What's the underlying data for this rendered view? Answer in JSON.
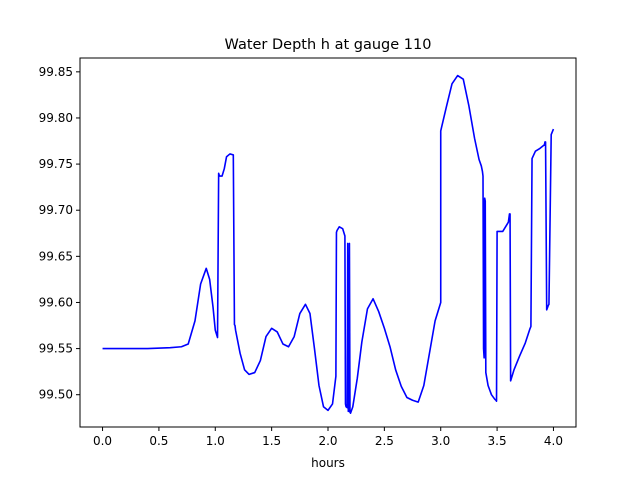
{
  "chart_data": {
    "type": "line",
    "title": "Water Depth h at gauge 110",
    "xlabel": "hours",
    "ylabel": "",
    "xlim": [
      -0.2,
      4.2
    ],
    "ylim": [
      99.465,
      99.865
    ],
    "xticks": [
      0.0,
      0.5,
      1.0,
      1.5,
      2.0,
      2.5,
      3.0,
      3.5,
      4.0
    ],
    "xtick_labels": [
      "0.0",
      "0.5",
      "1.0",
      "1.5",
      "2.0",
      "2.5",
      "3.0",
      "3.5",
      "4.0"
    ],
    "yticks": [
      99.5,
      99.55,
      99.6,
      99.65,
      99.7,
      99.75,
      99.8,
      99.85
    ],
    "ytick_labels": [
      "99.50",
      "99.55",
      "99.60",
      "99.65",
      "99.70",
      "99.75",
      "99.80",
      "99.85"
    ],
    "grid": false,
    "legend": "none",
    "series": [
      {
        "color": "#0000ff",
        "x": [
          0.0,
          0.2,
          0.4,
          0.6,
          0.7,
          0.76,
          0.82,
          0.87,
          0.92,
          0.95,
          0.98,
          1.0,
          1.02,
          1.03,
          1.035,
          1.04,
          1.06,
          1.08,
          1.1,
          1.13,
          1.16,
          1.17,
          1.175,
          1.18,
          1.22,
          1.26,
          1.3,
          1.35,
          1.4,
          1.45,
          1.5,
          1.55,
          1.6,
          1.65,
          1.7,
          1.75,
          1.8,
          1.84,
          1.88,
          1.92,
          1.96,
          2.0,
          2.04,
          2.07,
          2.075,
          2.08,
          2.1,
          2.13,
          2.15,
          2.155,
          2.16,
          2.17,
          2.175,
          2.18,
          2.185,
          2.19,
          2.195,
          2.2,
          2.22,
          2.26,
          2.3,
          2.35,
          2.4,
          2.45,
          2.5,
          2.55,
          2.6,
          2.65,
          2.7,
          2.75,
          2.8,
          2.85,
          2.9,
          2.95,
          3.0,
          3.0,
          3.05,
          3.1,
          3.15,
          3.2,
          3.25,
          3.3,
          3.34,
          3.36,
          3.37,
          3.375,
          3.38,
          3.385,
          3.39,
          3.395,
          3.4,
          3.42,
          3.45,
          3.48,
          3.49,
          3.495,
          3.5,
          3.55,
          3.6,
          3.61,
          3.615,
          3.62,
          3.65,
          3.7,
          3.75,
          3.79,
          3.8,
          3.81,
          3.84,
          3.88,
          3.92,
          3.925,
          3.93,
          3.94,
          3.955,
          3.96,
          3.98,
          4.0
        ],
        "y": [
          99.55,
          99.55,
          99.55,
          99.551,
          99.552,
          99.555,
          99.58,
          99.62,
          99.637,
          99.625,
          99.595,
          99.57,
          99.562,
          99.74,
          99.738,
          99.737,
          99.737,
          99.745,
          99.758,
          99.761,
          99.76,
          99.576,
          99.575,
          99.57,
          99.545,
          99.527,
          99.522,
          99.524,
          99.537,
          99.563,
          99.572,
          99.568,
          99.555,
          99.552,
          99.563,
          99.588,
          99.598,
          99.588,
          99.55,
          99.51,
          99.487,
          99.483,
          99.49,
          99.52,
          99.676,
          99.678,
          99.682,
          99.68,
          99.672,
          99.49,
          99.487,
          99.486,
          99.664,
          99.482,
          99.482,
          99.664,
          99.481,
          99.48,
          99.487,
          99.518,
          99.557,
          99.593,
          99.604,
          99.59,
          99.572,
          99.552,
          99.527,
          99.509,
          99.497,
          99.494,
          99.492,
          99.51,
          99.545,
          99.58,
          99.6,
          99.786,
          99.812,
          99.837,
          99.846,
          99.842,
          99.813,
          99.778,
          99.755,
          99.748,
          99.742,
          99.737,
          99.55,
          99.54,
          99.713,
          99.71,
          99.524,
          99.51,
          99.5,
          99.495,
          99.494,
          99.493,
          99.677,
          99.677,
          99.687,
          99.696,
          99.696,
          99.515,
          99.527,
          99.542,
          99.556,
          99.571,
          99.574,
          99.756,
          99.764,
          99.767,
          99.771,
          99.774,
          99.774,
          99.592,
          99.597,
          99.598,
          99.782,
          99.788
        ]
      }
    ]
  }
}
